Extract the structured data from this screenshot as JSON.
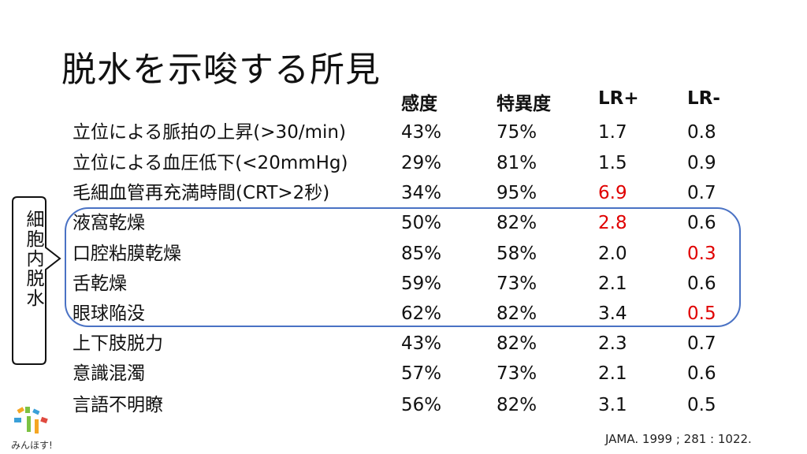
{
  "slide": {
    "title": "脱水を示唆する所見",
    "headers": [
      "感度",
      "特異度",
      "LR+",
      "LR-"
    ],
    "rows": [
      {
        "finding": "立位による脈拍の上昇(>30/min)",
        "sensitivity": "43%",
        "specificity": "75%",
        "lr_pos": "1.7",
        "lr_neg": "0.8"
      },
      {
        "finding": "立位による血圧低下(<20mmHg)",
        "sensitivity": "29%",
        "specificity": "81%",
        "lr_pos": "1.5",
        "lr_neg": "0.9"
      },
      {
        "finding": "毛細血管再充満時間(CRT>2秒)",
        "sensitivity": "34%",
        "specificity": "95%",
        "lr_pos": "6.9",
        "lr_neg": "0.7"
      },
      {
        "finding": "液窩乾燥",
        "sensitivity": "50%",
        "specificity": "82%",
        "lr_pos": "2.8",
        "lr_neg": "0.6"
      },
      {
        "finding": "口腔粘膜乾燥",
        "sensitivity": "85%",
        "specificity": "58%",
        "lr_pos": "2.0",
        "lr_neg": "0.3"
      },
      {
        "finding": "舌乾燥",
        "sensitivity": "59%",
        "specificity": "73%",
        "lr_pos": "2.1",
        "lr_neg": "0.6"
      },
      {
        "finding": "眼球陥没",
        "sensitivity": "62%",
        "specificity": "82%",
        "lr_pos": "3.4",
        "lr_neg": "0.5"
      },
      {
        "finding": "上下肢脱力",
        "sensitivity": "43%",
        "specificity": "82%",
        "lr_pos": "2.3",
        "lr_neg": "0.7"
      },
      {
        "finding": "意識混濁",
        "sensitivity": "57%",
        "specificity": "73%",
        "lr_pos": "2.1",
        "lr_neg": "0.6"
      },
      {
        "finding": "言語不明瞭",
        "sensitivity": "56%",
        "specificity": "82%",
        "lr_pos": "3.1",
        "lr_neg": "0.5"
      }
    ],
    "group_label": "細胞内脱水",
    "source": "JAMA. 1999 ; 281 : 1022.",
    "logo_text": "みんほす!"
  },
  "colors": {
    "highlight": "#e00000",
    "group_border": "#4a72c4"
  }
}
